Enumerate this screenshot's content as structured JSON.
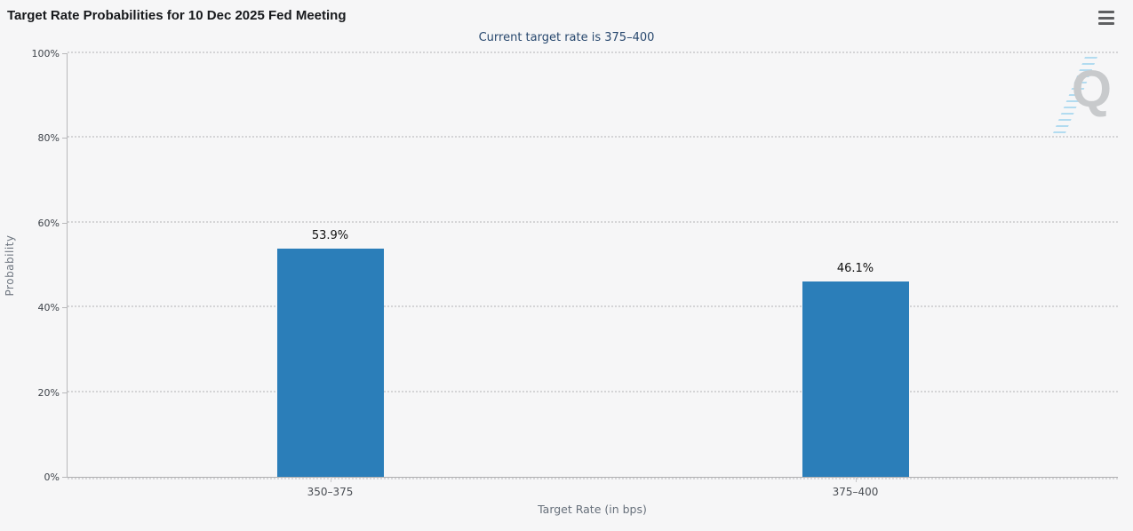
{
  "header": {
    "title": "Target Rate Probabilities for 10 Dec 2025 Fed Meeting",
    "menu_tooltip": "Chart context menu"
  },
  "subtitle": "Current target rate is 375–400",
  "watermark": {
    "letter": "Q"
  },
  "colors": {
    "bar": "#2b7eb9",
    "background": "#f6f6f7",
    "subtitle_text": "#28486e",
    "axis_line": "#b8b8ba",
    "gridline": "#d4d4d6"
  },
  "chart_data": {
    "type": "bar",
    "title": "Target Rate Probabilities for 10 Dec 2025 Fed Meeting",
    "subtitle": "Current target rate is 375–400",
    "categories": [
      "350–375",
      "375–400"
    ],
    "values": [
      53.9,
      46.1
    ],
    "value_labels": [
      "53.9%",
      "46.1%"
    ],
    "xlabel": "Target Rate (in bps)",
    "ylabel": "Probability",
    "ylim": [
      0,
      100
    ],
    "yticks": [
      "0%",
      "20%",
      "40%",
      "60%",
      "80%",
      "100%"
    ],
    "grid": "horizontal-dotted",
    "legend_position": "none",
    "bar_color": "#2b7eb9"
  }
}
